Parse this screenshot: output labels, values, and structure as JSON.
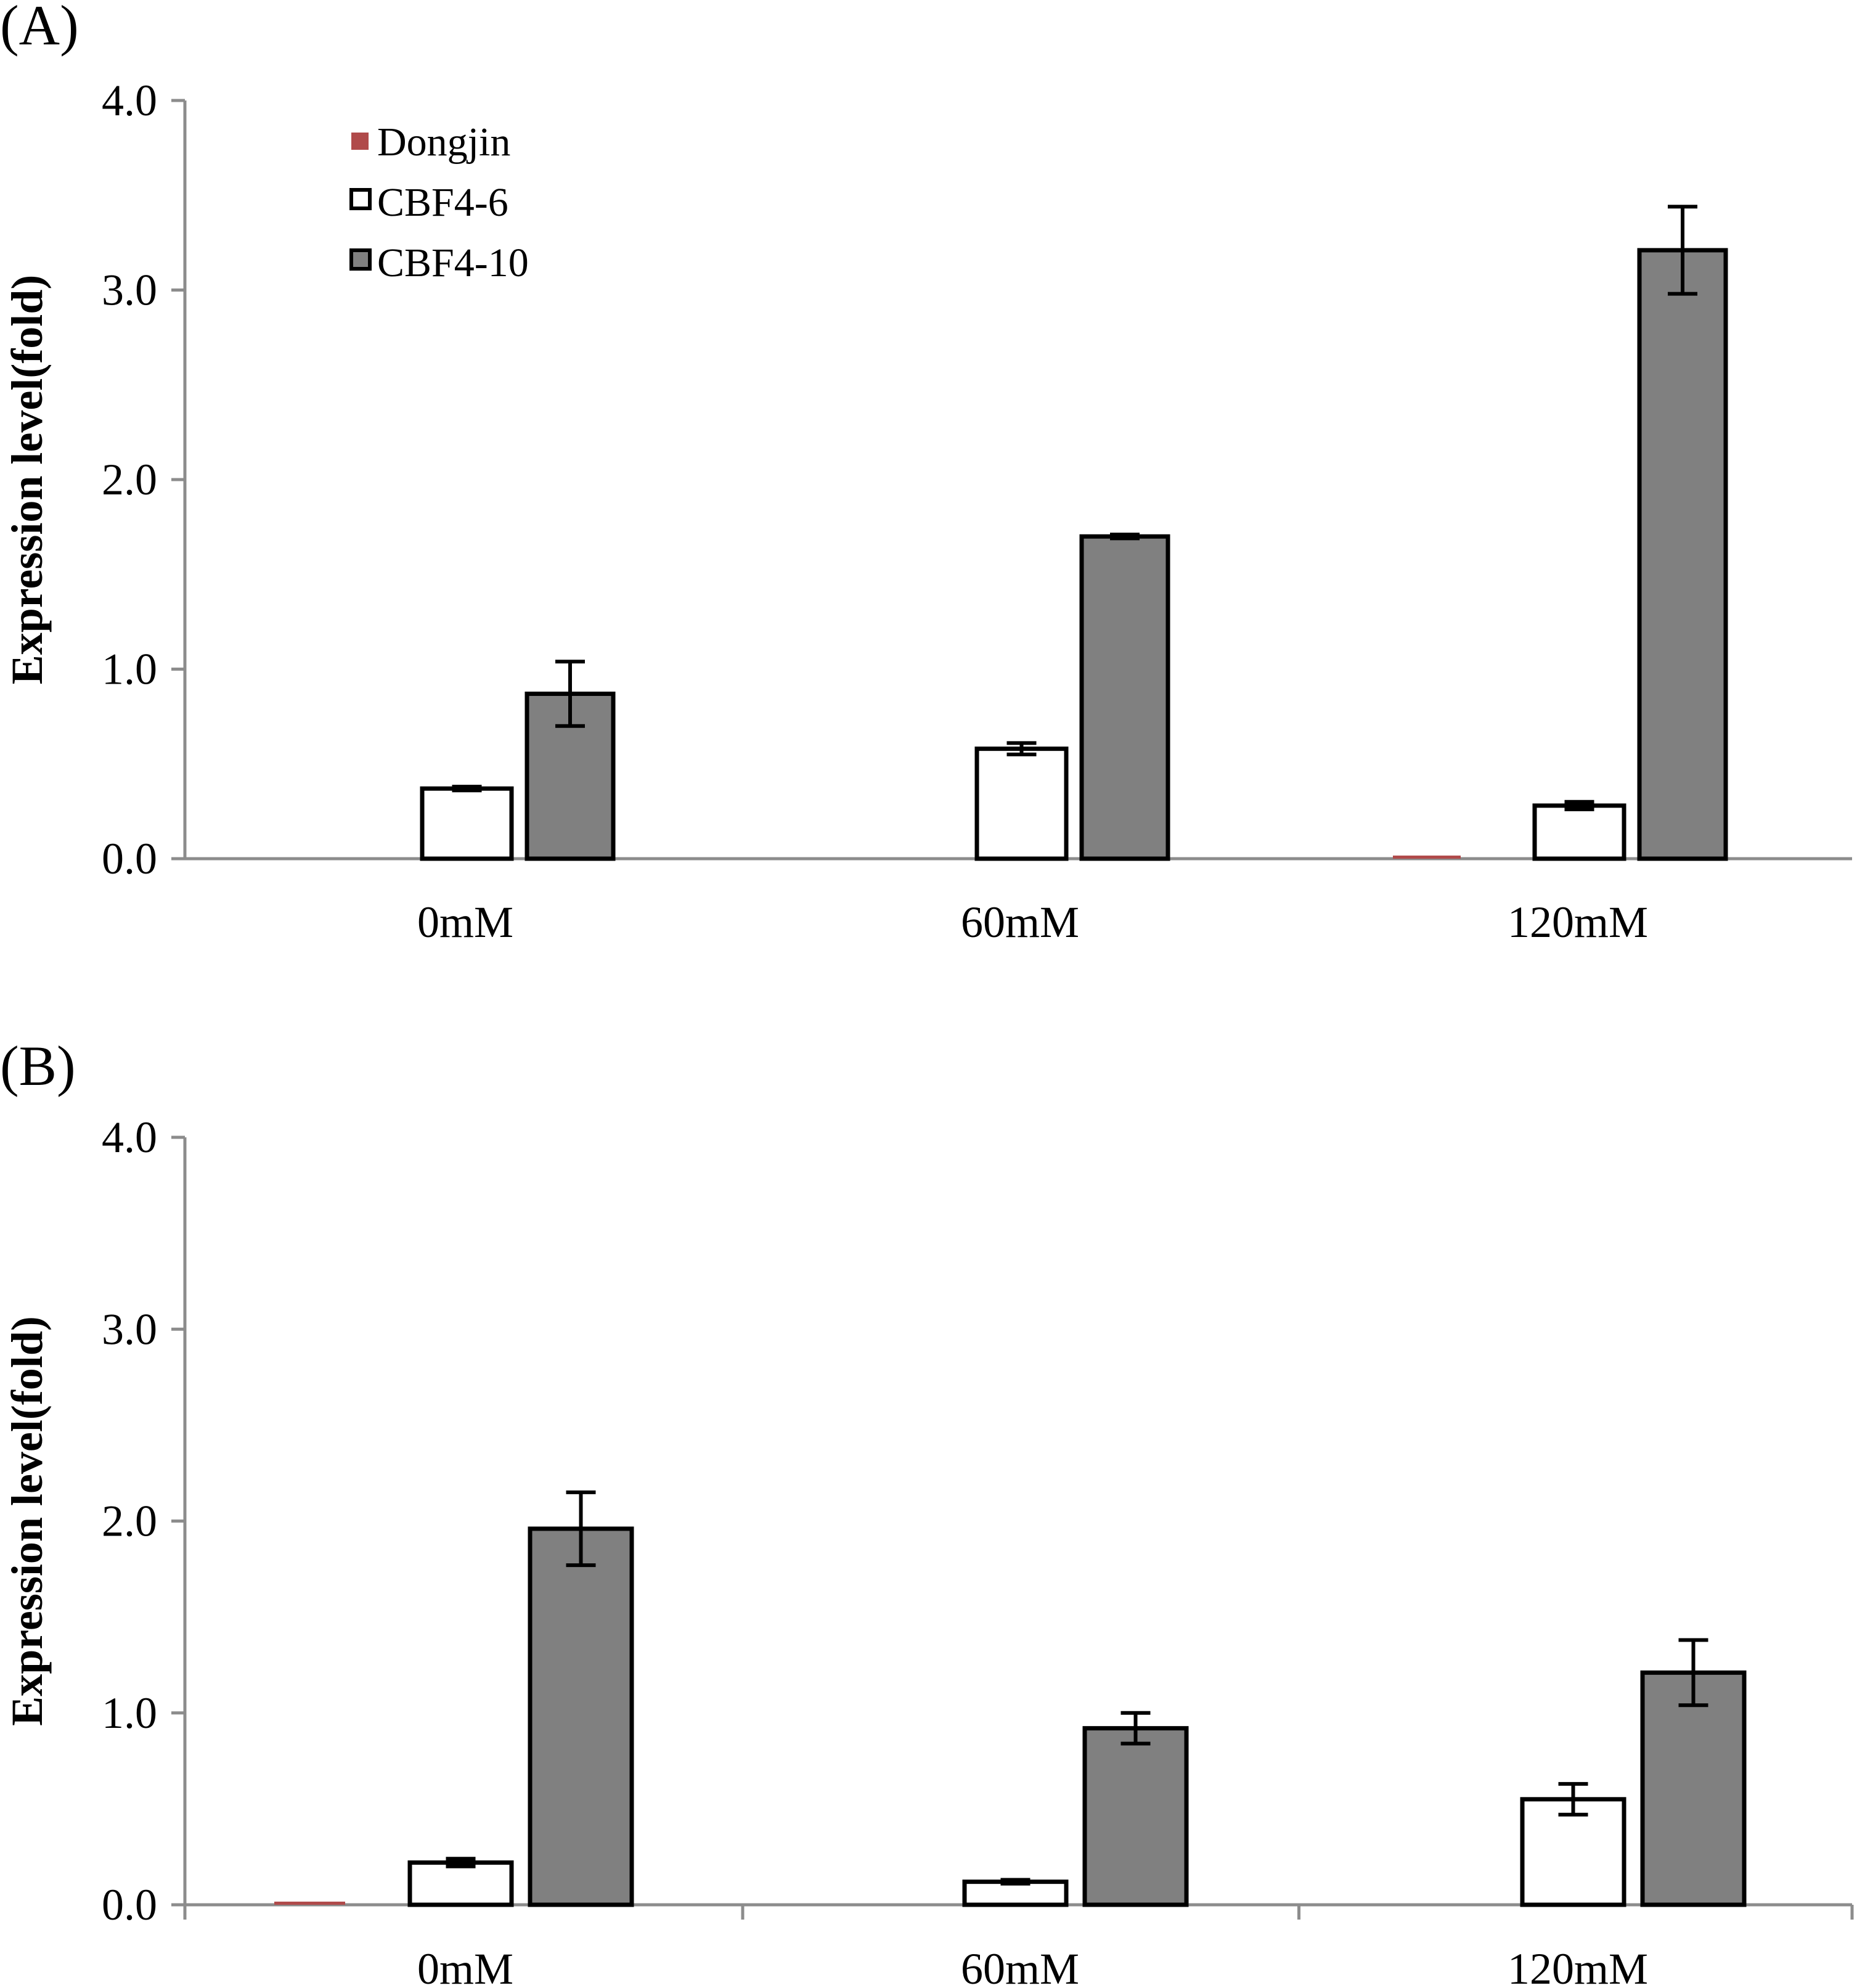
{
  "colors": {
    "Dongjin": "#b04a4a",
    "CBF4-6": "#ffffff",
    "CBF4-10": "#808080",
    "axis": "#8c8c8c",
    "bar_stroke": "#000000"
  },
  "chart_data": [
    {
      "type": "bar",
      "panel_label": "(A)",
      "categories": [
        "0mM",
        "60mM",
        "120mM"
      ],
      "ylabel": "Expression level(fold)",
      "xlabel": "",
      "ylim": [
        0,
        4.0
      ],
      "yticks": [
        "0.0",
        "1.0",
        "2.0",
        "3.0",
        "4.0"
      ],
      "grid": false,
      "legend": {
        "placement": "top-left",
        "entries": [
          "Dongjin",
          "CBF4-6",
          "CBF4-10"
        ]
      },
      "series": [
        {
          "name": "Dongjin",
          "values": [
            0.0,
            0.0,
            0.01
          ],
          "errors": [
            0,
            0,
            0
          ]
        },
        {
          "name": "CBF4-6",
          "values": [
            0.37,
            0.58,
            0.28
          ],
          "errors": [
            0.01,
            0.03,
            0.02
          ]
        },
        {
          "name": "CBF4-10",
          "values": [
            0.87,
            1.7,
            3.21
          ],
          "errors": [
            0.17,
            0.01,
            0.23
          ]
        }
      ]
    },
    {
      "type": "bar",
      "panel_label": "(B)",
      "categories": [
        "0mM",
        "60mM",
        "120mM"
      ],
      "ylabel": "Expression level(fold)",
      "xlabel": "",
      "ylim": [
        0,
        4.0
      ],
      "yticks": [
        "0.0",
        "1.0",
        "2.0",
        "3.0",
        "4.0"
      ],
      "grid": false,
      "legend": null,
      "series": [
        {
          "name": "Dongjin",
          "values": [
            0.01,
            0.0,
            0.0
          ],
          "errors": [
            0,
            0,
            0
          ]
        },
        {
          "name": "CBF4-6",
          "values": [
            0.22,
            0.12,
            0.55
          ],
          "errors": [
            0.02,
            0.01,
            0.08
          ]
        },
        {
          "name": "CBF4-10",
          "values": [
            1.96,
            0.92,
            1.21
          ],
          "errors": [
            0.19,
            0.08,
            0.17
          ]
        }
      ]
    }
  ]
}
